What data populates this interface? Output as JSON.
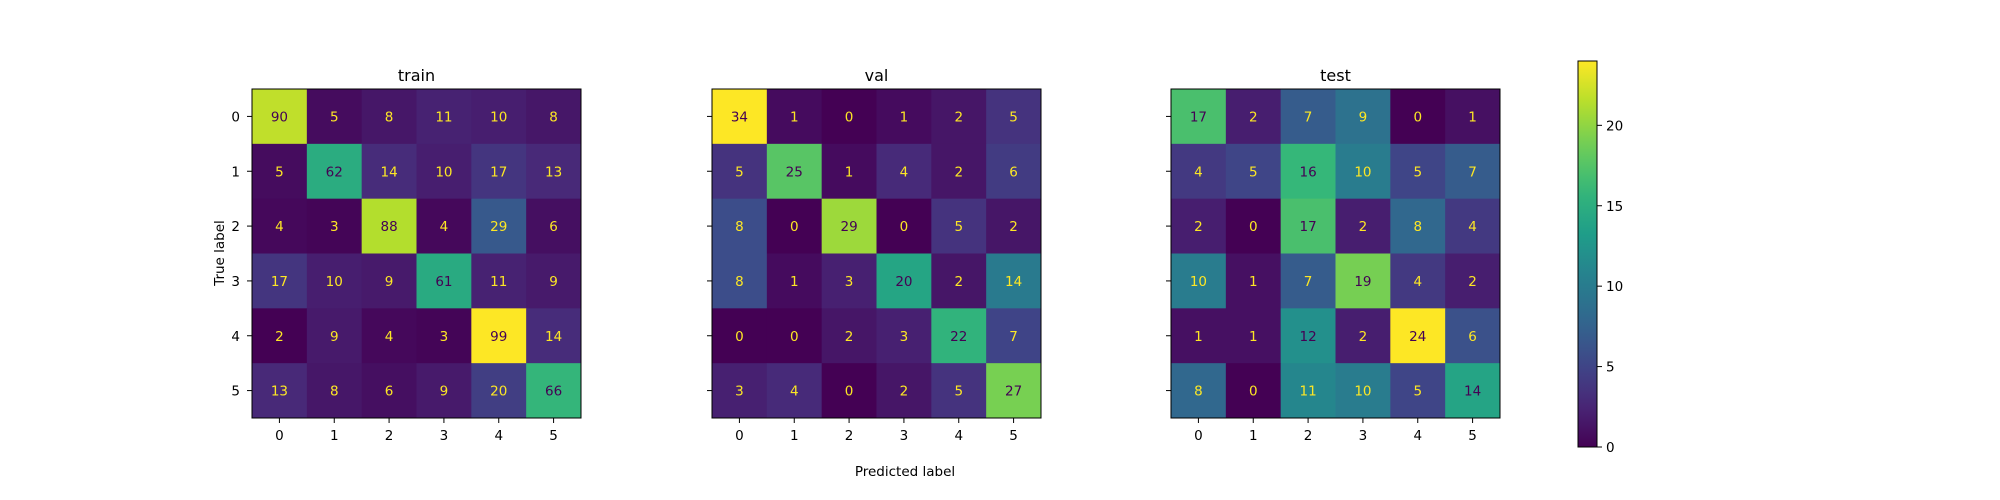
{
  "chart_data": {
    "type": "heatmap",
    "xlabel": "Predicted label",
    "ylabel": "True label",
    "classes": [
      "0",
      "1",
      "2",
      "3",
      "4",
      "5"
    ],
    "colormap": "viridis",
    "colorbar": {
      "range": [
        0,
        24
      ],
      "ticks": [
        "0",
        "5",
        "10",
        "15",
        "20"
      ]
    },
    "panels": [
      {
        "title": "train",
        "matrix": [
          [
            90,
            5,
            8,
            11,
            10,
            8
          ],
          [
            5,
            62,
            14,
            10,
            17,
            13
          ],
          [
            4,
            3,
            88,
            4,
            29,
            6
          ],
          [
            17,
            10,
            9,
            61,
            11,
            9
          ],
          [
            2,
            9,
            4,
            3,
            99,
            14
          ],
          [
            13,
            8,
            6,
            9,
            20,
            66
          ]
        ]
      },
      {
        "title": "val",
        "matrix": [
          [
            34,
            1,
            0,
            1,
            2,
            5
          ],
          [
            5,
            25,
            1,
            4,
            2,
            6
          ],
          [
            8,
            0,
            29,
            0,
            5,
            2
          ],
          [
            8,
            1,
            3,
            20,
            2,
            14
          ],
          [
            0,
            0,
            2,
            3,
            22,
            7
          ],
          [
            3,
            4,
            0,
            2,
            5,
            27
          ]
        ]
      },
      {
        "title": "test",
        "matrix": [
          [
            17,
            2,
            7,
            9,
            0,
            1
          ],
          [
            4,
            5,
            16,
            10,
            5,
            7
          ],
          [
            2,
            0,
            17,
            2,
            8,
            4
          ],
          [
            10,
            1,
            7,
            19,
            4,
            2
          ],
          [
            1,
            1,
            12,
            2,
            24,
            6
          ],
          [
            8,
            0,
            11,
            10,
            5,
            14
          ]
        ]
      }
    ]
  }
}
